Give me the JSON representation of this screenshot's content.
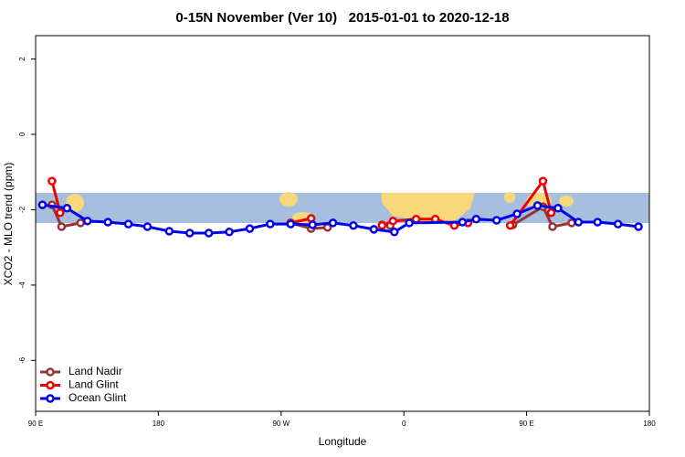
{
  "chart_data": {
    "type": "line",
    "title": "0-15N November (Ver 10)   2015-01-01 to 2020-12-18",
    "x_label": "Longitude",
    "y_label": "XCO2 - MLO trend (ppm)",
    "xlim": [
      90,
      540
    ],
    "ylim": [
      -7.35,
      2.62
    ],
    "xticks": [
      {
        "value": 90,
        "label": "90 E"
      },
      180,
      {
        "value": 270,
        "label": "90 W"
      },
      {
        "value": 360,
        "label": "0"
      },
      {
        "value": 450,
        "label": "90 E"
      },
      {
        "value": 540,
        "label": "180"
      }
    ],
    "yticks": [
      2,
      0,
      -2,
      -4,
      -6
    ],
    "legend": "bottom-left",
    "series": [
      {
        "name": "Land Nadir",
        "color": "#993333",
        "x": [
          102,
          109,
          123,
          null,
          277,
          292,
          304,
          null,
          344,
          350,
          null,
          440,
          462,
          469,
          483
        ],
        "values": [
          -1.87,
          -2.45,
          -2.35,
          null,
          -2.35,
          -2.5,
          -2.47,
          null,
          -2.4,
          -2.42,
          null,
          -2.4,
          -1.92,
          -2.45,
          -2.35
        ]
      },
      {
        "name": "Land Glint",
        "color": "#ee0000",
        "x": [
          102,
          108,
          null,
          277,
          292,
          null,
          344,
          352,
          369,
          383,
          397,
          407,
          null,
          438,
          462,
          468
        ],
        "values": [
          -1.24,
          -2.08,
          null,
          -2.35,
          -2.23,
          null,
          -2.42,
          -2.3,
          -2.25,
          -2.25,
          -2.42,
          -2.35,
          null,
          -2.42,
          -1.24,
          -2.08
        ]
      },
      {
        "name": "Ocean Glint",
        "color": "#0000ee",
        "x": [
          95,
          113,
          128,
          143,
          158,
          172,
          188,
          203,
          217,
          232,
          247,
          262,
          277,
          293,
          308,
          323,
          338,
          353,
          364,
          403,
          413,
          428,
          443,
          458,
          473,
          488,
          502,
          517,
          532
        ],
        "values": [
          -1.87,
          -1.96,
          -2.3,
          -2.33,
          -2.38,
          -2.45,
          -2.57,
          -2.62,
          -2.62,
          -2.59,
          -2.5,
          -2.38,
          -2.38,
          -2.4,
          -2.35,
          -2.42,
          -2.52,
          -2.59,
          -2.35,
          -2.33,
          -2.25,
          -2.28,
          -2.11,
          -1.89,
          -1.96,
          -2.33,
          -2.33,
          -2.38,
          -2.45
        ]
      }
    ]
  }
}
